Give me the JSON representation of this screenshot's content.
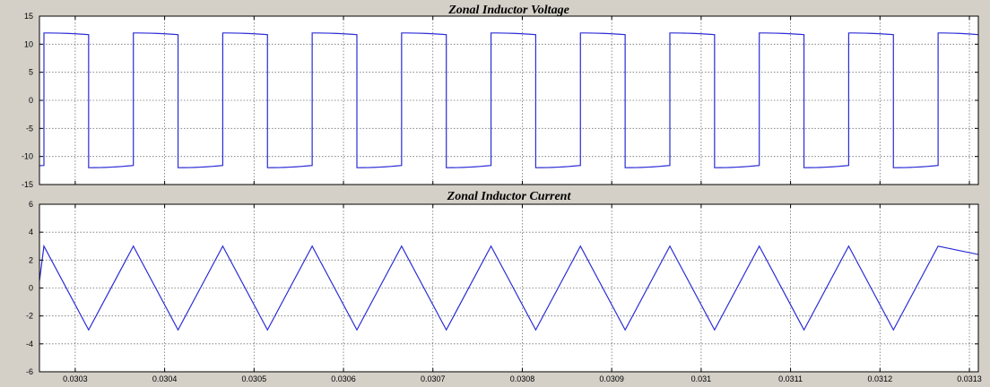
{
  "figure": {
    "background": "#d4d0c8",
    "axes_background": "#ffffff",
    "line_color": "#2b2bd6",
    "grid_color": "#707070"
  },
  "chart_data": [
    {
      "type": "line",
      "title": "Zonal Inductor Voltage",
      "xlabel": "",
      "ylabel": "",
      "xlim": [
        0.03026,
        0.03131
      ],
      "ylim": [
        -15,
        15
      ],
      "yticks": [
        -15,
        -10,
        -5,
        0,
        5,
        10,
        15
      ],
      "ytick_labels": [
        "-15",
        "-10",
        "-5",
        "0",
        "5",
        "10",
        "15"
      ],
      "xticks": [
        0.0303,
        0.0304,
        0.0305,
        0.0306,
        0.0307,
        0.0308,
        0.0309,
        0.031,
        0.0311,
        0.0312,
        0.0313
      ],
      "xtick_labels": [],
      "grid": true,
      "legend": "none",
      "series": [
        {
          "waveform": "square",
          "period": 0.0001,
          "high_level_start": 12.0,
          "high_level_end": 11.7,
          "low_level_start": -12.0,
          "low_level_end": -11.6,
          "rising_edges": [
            0.030265,
            0.030365,
            0.030465,
            0.030565,
            0.030665,
            0.030765,
            0.030865,
            0.030965,
            0.031065,
            0.031165,
            0.031265
          ],
          "falling_edges": [
            0.030315,
            0.030415,
            0.030515,
            0.030615,
            0.030715,
            0.030815,
            0.030915,
            0.031015,
            0.031115,
            0.031215,
            0.031315
          ]
        }
      ]
    },
    {
      "type": "line",
      "title": "Zonal Inductor Current",
      "xlabel": "",
      "ylabel": "",
      "xlim": [
        0.03026,
        0.03131
      ],
      "ylim": [
        -6,
        6
      ],
      "yticks": [
        -6,
        -4,
        -2,
        0,
        2,
        4,
        6
      ],
      "ytick_labels": [
        "-6",
        "-4",
        "-2",
        "0",
        "2",
        "4",
        "6"
      ],
      "xticks": [
        0.0303,
        0.0304,
        0.0305,
        0.0306,
        0.0307,
        0.0308,
        0.0309,
        0.031,
        0.0311,
        0.0312,
        0.0313
      ],
      "xtick_labels": [
        "0.0303",
        "0.0304",
        "0.0305",
        "0.0306",
        "0.0307",
        "0.0308",
        "0.0309",
        "0.031",
        "0.0311",
        "0.0312",
        "0.0313"
      ],
      "grid": true,
      "legend": "none",
      "series": [
        {
          "waveform": "triangle",
          "x": [
            0.03026,
            0.030265,
            0.030315,
            0.030365,
            0.030415,
            0.030465,
            0.030515,
            0.030565,
            0.030615,
            0.030665,
            0.030715,
            0.030765,
            0.030815,
            0.030865,
            0.030915,
            0.030965,
            0.031015,
            0.031065,
            0.031115,
            0.031165,
            0.031215,
            0.031265,
            0.031315
          ],
          "y": [
            0.5,
            3.0,
            -3.0,
            3.0,
            -3.0,
            3.0,
            -3.0,
            3.0,
            -3.0,
            3.0,
            -3.0,
            3.0,
            -3.0,
            3.0,
            -3.0,
            3.0,
            -3.0,
            3.0,
            -3.0,
            3.0,
            -3.0,
            3.0,
            2.4
          ]
        }
      ]
    }
  ]
}
